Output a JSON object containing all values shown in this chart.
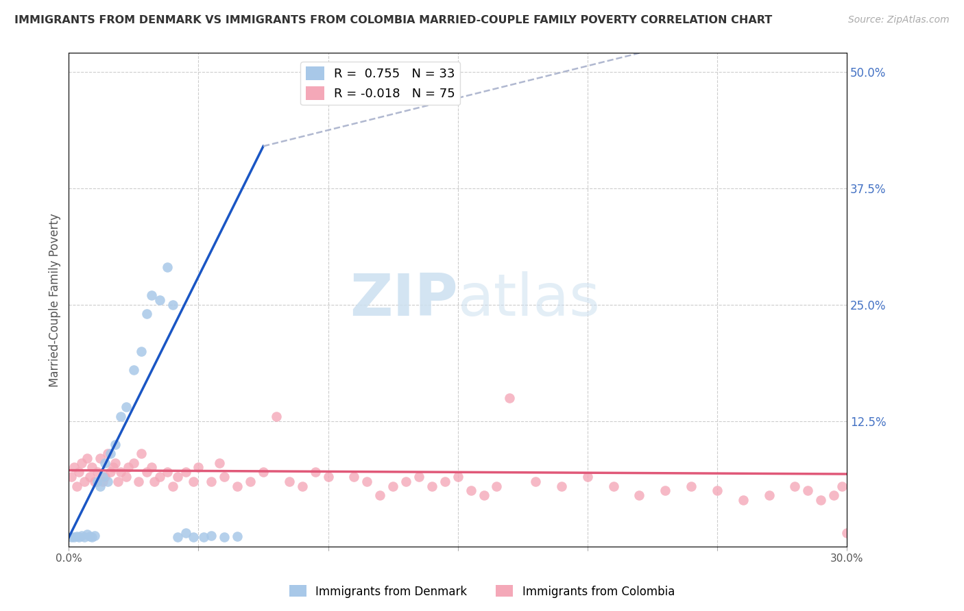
{
  "title": "IMMIGRANTS FROM DENMARK VS IMMIGRANTS FROM COLOMBIA MARRIED-COUPLE FAMILY POVERTY CORRELATION CHART",
  "source": "Source: ZipAtlas.com",
  "ylabel": "Married-Couple Family Poverty",
  "xlim": [
    0.0,
    0.3
  ],
  "ylim": [
    -0.01,
    0.52
  ],
  "yticks_right": [
    0.0,
    0.125,
    0.25,
    0.375,
    0.5
  ],
  "ytick_labels_right": [
    "",
    "12.5%",
    "25.0%",
    "37.5%",
    "50.0%"
  ],
  "denmark_color": "#a8c8e8",
  "colombia_color": "#f4a8b8",
  "denmark_R": "0.755",
  "denmark_N": "33",
  "colombia_R": "-0.018",
  "colombia_N": "75",
  "legend_denmark": "Immigrants from Denmark",
  "legend_colombia": "Immigrants from Colombia",
  "regression_blue_color": "#1a56c4",
  "regression_pink_color": "#e05878",
  "dashed_color": "#b0b8d0",
  "watermark_color": "#cce0f0",
  "denmark_x": [
    0.001,
    0.002,
    0.003,
    0.004,
    0.005,
    0.006,
    0.007,
    0.008,
    0.009,
    0.01,
    0.011,
    0.012,
    0.013,
    0.014,
    0.015,
    0.016,
    0.018,
    0.02,
    0.022,
    0.025,
    0.028,
    0.03,
    0.032,
    0.035,
    0.038,
    0.04,
    0.042,
    0.045,
    0.048,
    0.052,
    0.055,
    0.06,
    0.065
  ],
  "denmark_y": [
    0.0,
    0.0,
    0.001,
    0.0,
    0.002,
    0.0,
    0.003,
    0.001,
    0.0,
    0.002,
    0.06,
    0.055,
    0.065,
    0.08,
    0.06,
    0.09,
    0.1,
    0.13,
    0.14,
    0.18,
    0.2,
    0.24,
    0.26,
    0.255,
    0.29,
    0.25,
    0.0,
    0.005,
    0.0,
    0.0,
    0.002,
    0.0,
    0.001
  ],
  "colombia_x": [
    0.001,
    0.002,
    0.003,
    0.004,
    0.005,
    0.006,
    0.007,
    0.008,
    0.009,
    0.01,
    0.011,
    0.012,
    0.013,
    0.014,
    0.015,
    0.016,
    0.017,
    0.018,
    0.019,
    0.02,
    0.022,
    0.023,
    0.025,
    0.027,
    0.028,
    0.03,
    0.032,
    0.033,
    0.035,
    0.038,
    0.04,
    0.042,
    0.045,
    0.048,
    0.05,
    0.055,
    0.058,
    0.06,
    0.065,
    0.07,
    0.075,
    0.08,
    0.085,
    0.09,
    0.095,
    0.1,
    0.11,
    0.115,
    0.12,
    0.125,
    0.13,
    0.135,
    0.14,
    0.145,
    0.15,
    0.155,
    0.16,
    0.165,
    0.17,
    0.18,
    0.19,
    0.2,
    0.21,
    0.22,
    0.23,
    0.24,
    0.25,
    0.26,
    0.27,
    0.28,
    0.285,
    0.29,
    0.295,
    0.298,
    0.3
  ],
  "colombia_y": [
    0.065,
    0.075,
    0.055,
    0.07,
    0.08,
    0.06,
    0.085,
    0.065,
    0.075,
    0.06,
    0.07,
    0.085,
    0.06,
    0.065,
    0.09,
    0.07,
    0.075,
    0.08,
    0.06,
    0.07,
    0.065,
    0.075,
    0.08,
    0.06,
    0.09,
    0.07,
    0.075,
    0.06,
    0.065,
    0.07,
    0.055,
    0.065,
    0.07,
    0.06,
    0.075,
    0.06,
    0.08,
    0.065,
    0.055,
    0.06,
    0.07,
    0.13,
    0.06,
    0.055,
    0.07,
    0.065,
    0.065,
    0.06,
    0.045,
    0.055,
    0.06,
    0.065,
    0.055,
    0.06,
    0.065,
    0.05,
    0.045,
    0.055,
    0.15,
    0.06,
    0.055,
    0.065,
    0.055,
    0.045,
    0.05,
    0.055,
    0.05,
    0.04,
    0.045,
    0.055,
    0.05,
    0.04,
    0.045,
    0.055,
    0.005
  ],
  "blue_line_x": [
    0.0,
    0.075
  ],
  "blue_line_y": [
    0.0,
    0.42
  ],
  "dashed_line_x": [
    0.075,
    0.22
  ],
  "dashed_line_y": [
    0.42,
    0.52
  ],
  "pink_line_x": [
    0.0,
    0.3
  ],
  "pink_line_y": [
    0.072,
    0.068
  ]
}
